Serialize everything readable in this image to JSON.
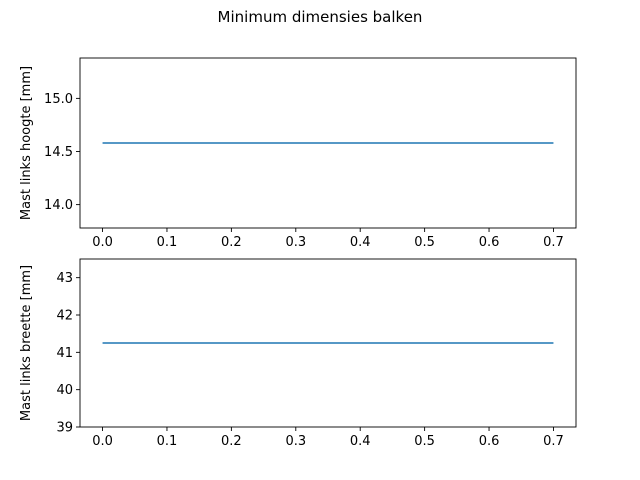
{
  "figure": {
    "title": "Minimum dimensies balken"
  },
  "chart_data": [
    {
      "type": "line",
      "ylabel": "Mast links hoogte [mm]",
      "xlim": [
        -0.035,
        0.735
      ],
      "ylim": [
        13.78,
        15.38
      ],
      "xticks": [
        0.0,
        0.1,
        0.2,
        0.3,
        0.4,
        0.5,
        0.6,
        0.7
      ],
      "xtick_labels": [
        "0.0",
        "0.1",
        "0.2",
        "0.3",
        "0.4",
        "0.5",
        "0.6",
        "0.7"
      ],
      "yticks": [
        14.0,
        14.5,
        15.0
      ],
      "ytick_labels": [
        "14.0",
        "14.5",
        "15.0"
      ],
      "grid": false,
      "series": [
        {
          "x": [
            0.0,
            0.7
          ],
          "y": [
            14.58,
            14.58
          ],
          "color": "#1f77b4"
        }
      ]
    },
    {
      "type": "line",
      "ylabel": "Mast links breette [mm]",
      "xlim": [
        -0.035,
        0.735
      ],
      "ylim": [
        39.0,
        43.5
      ],
      "xticks": [
        0.0,
        0.1,
        0.2,
        0.3,
        0.4,
        0.5,
        0.6,
        0.7
      ],
      "xtick_labels": [
        "0.0",
        "0.1",
        "0.2",
        "0.3",
        "0.4",
        "0.5",
        "0.6",
        "0.7"
      ],
      "yticks": [
        39,
        40,
        41,
        42,
        43
      ],
      "ytick_labels": [
        "39",
        "40",
        "41",
        "42",
        "43"
      ],
      "grid": false,
      "series": [
        {
          "x": [
            0.0,
            0.7
          ],
          "y": [
            41.25,
            41.25
          ],
          "color": "#1f77b4"
        }
      ]
    }
  ]
}
